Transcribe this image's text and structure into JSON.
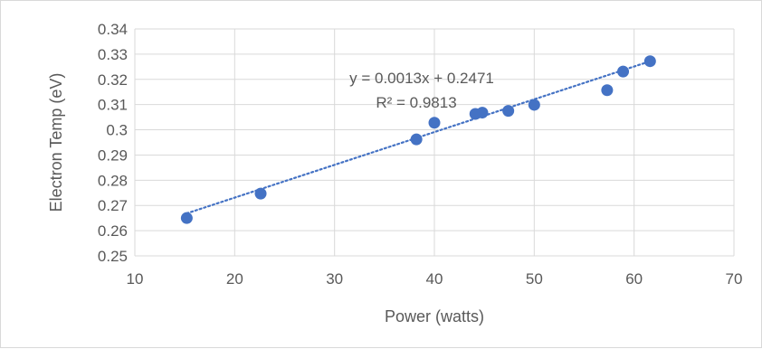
{
  "chart_data": {
    "type": "scatter",
    "title": "",
    "xlabel": "Power (watts)",
    "ylabel": "Electron Temp (eV)",
    "xlim": [
      10,
      70
    ],
    "ylim": [
      0.25,
      0.34
    ],
    "x_ticks": [
      "10",
      "20",
      "30",
      "40",
      "50",
      "60",
      "70"
    ],
    "y_ticks": [
      "0.25",
      "0.26",
      "0.27",
      "0.28",
      "0.29",
      "0.3",
      "0.31",
      "0.32",
      "0.33",
      "0.34"
    ],
    "grid": true,
    "legend": "none",
    "marker_color": "#4472c4",
    "trendline": {
      "type": "linear",
      "slope": 0.0013,
      "intercept": 0.2471,
      "color": "#4472c4",
      "style": "dotted",
      "equation_label": "y = 0.0013x + 0.2471",
      "r2_label": "R² = 0.9813"
    },
    "points": [
      {
        "x": 15.2,
        "y": 0.265
      },
      {
        "x": 22.6,
        "y": 0.2747
      },
      {
        "x": 38.2,
        "y": 0.2962
      },
      {
        "x": 40.0,
        "y": 0.3028
      },
      {
        "x": 44.1,
        "y": 0.3063
      },
      {
        "x": 44.8,
        "y": 0.3068
      },
      {
        "x": 47.4,
        "y": 0.3075
      },
      {
        "x": 50.0,
        "y": 0.3099
      },
      {
        "x": 57.3,
        "y": 0.3157
      },
      {
        "x": 58.9,
        "y": 0.3231
      },
      {
        "x": 61.6,
        "y": 0.3272
      }
    ]
  }
}
